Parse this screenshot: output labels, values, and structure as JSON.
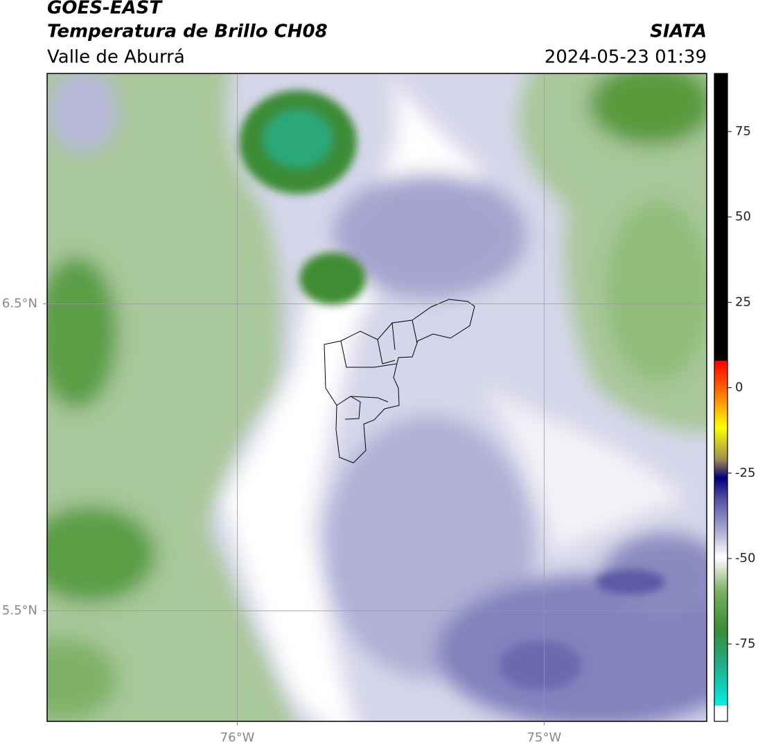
{
  "header": {
    "satellite": "GOES-EAST",
    "product": "Temperatura de Brillo CH08",
    "region": "Valle de Aburrá",
    "source": "SIATA",
    "datetime": "2024-05-23 01:39"
  },
  "map": {
    "xlim": [
      -76.62,
      -74.47
    ],
    "ylim": [
      5.14,
      7.25
    ],
    "lon_ticks": [
      {
        "value": -76,
        "label": "76°W"
      },
      {
        "value": -75,
        "label": "75°W"
      }
    ],
    "lat_ticks": [
      {
        "value": 6.5,
        "label": "6.5°N"
      },
      {
        "value": 5.5,
        "label": "5.5°N"
      }
    ],
    "grid": true
  },
  "colorbar": {
    "lim": [
      -93,
      92
    ],
    "ticks": [
      75,
      50,
      25,
      0,
      -25,
      -50,
      -75
    ]
  }
}
